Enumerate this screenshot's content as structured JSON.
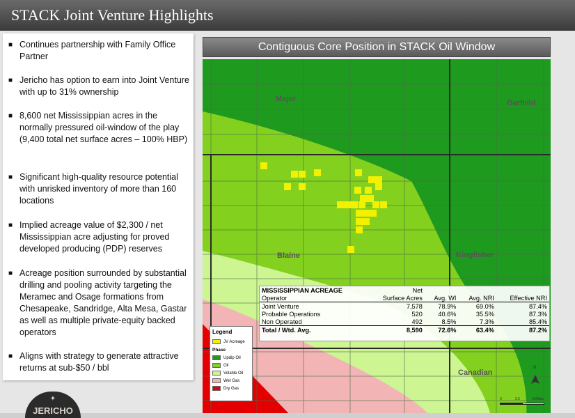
{
  "header": {
    "title": "STACK Joint Venture Highlights"
  },
  "bullets": [
    "Continues partnership with Family Office Partner",
    "Jericho has option to earn into Joint Venture with up to 31% ownership",
    "8,600 net Mississippian acres in the normally pressured oil-window of the play (9,400 total net surface acres – 100% HBP)",
    "Significant high-quality resource potential with unrisked inventory of more than 160 locations",
    "Implied acreage value of $2,300 / net Mississippian acre adjusting for proved developed producing (PDP) reserves",
    "Acreage position surrounded by substantial drilling and pooling activity targeting the Meramec and Osage formations from Chesapeake, Sandridge, Alta Mesa, Gastar as well as multiple private-equity backed operators",
    "Aligns with strategy to generate attractive returns at sub-$50 / bbl"
  ],
  "map": {
    "title": "Contiguous Core Position in STACK Oil Window",
    "counties": [
      "Major",
      "Garfield",
      "Blaine",
      "Kingfisher",
      "Canadian"
    ],
    "colors": {
      "updip_oil": "#1e9a1e",
      "oil": "#84d01e",
      "volatile_oil": "#cdf592",
      "wet_gas": "#f2b4b4",
      "dry_gas": "#e40000",
      "jv_acreage": "#f2f200"
    }
  },
  "legend": {
    "title": "Legend",
    "jv": "JV Acreage",
    "phase_title": "Phase",
    "phases": [
      "Updip Oil",
      "Oil",
      "Volatile Oil",
      "Wet Gas",
      "Dry Gas"
    ]
  },
  "scale": {
    "zero": "0",
    "mid": "2.5",
    "max": "5 Miles",
    "north": "N"
  },
  "acreage_table": {
    "title": "MISSISSIPPIAN ACREAGE",
    "headers": [
      "Operator",
      "Net Surface Acres",
      "Avg. WI",
      "Avg. NRI",
      "Effective NRI"
    ],
    "header_net": "Net",
    "header_surface": "Surface Acres",
    "rows": [
      {
        "operator": "Joint Venture",
        "acres": "7,578",
        "wi": "78.9%",
        "nri": "69.0%",
        "eff": "87.4%"
      },
      {
        "operator": "Probable Operations",
        "acres": "520",
        "wi": "40.6%",
        "nri": "35.5%",
        "eff": "87.3%"
      },
      {
        "operator": "Non Operated",
        "acres": "492",
        "wi": "8.5%",
        "nri": "7.3%",
        "eff": "85.4%"
      }
    ],
    "total": {
      "operator": "Total / Wtd. Avg.",
      "acres": "8,590",
      "wi": "72.6%",
      "nri": "63.4%",
      "eff": "87.2%"
    }
  },
  "logo": {
    "text": "JERICHO"
  }
}
